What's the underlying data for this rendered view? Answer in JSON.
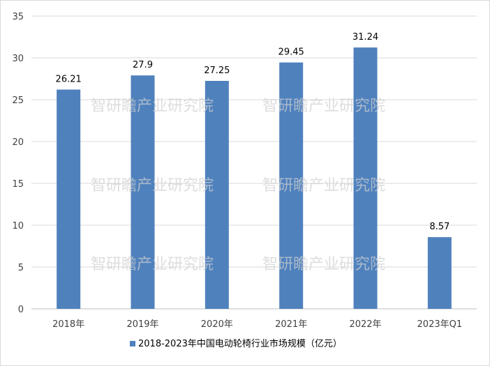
{
  "chart_data": {
    "type": "bar",
    "categories": [
      "2018年",
      "2019年",
      "2020年",
      "2021年",
      "2022年",
      "2023年Q1"
    ],
    "series": [
      {
        "name": "2018-2023年中国电动轮椅行业市场规模（亿元）",
        "values": [
          26.21,
          27.9,
          27.25,
          29.45,
          31.24,
          8.57
        ],
        "labels": [
          "26.21",
          "27.9",
          "27.25",
          "29.45",
          "31.24",
          "8.57"
        ]
      }
    ],
    "yticks": [
      "0",
      "5",
      "10",
      "15",
      "20",
      "25",
      "30",
      "35"
    ],
    "ylim": [
      0,
      35
    ],
    "grid": true,
    "legend_position": "bottom",
    "bar_color": "#4f81bd",
    "title": "",
    "xlabel": "",
    "ylabel": ""
  },
  "watermark": "智研瞻产业研究院"
}
